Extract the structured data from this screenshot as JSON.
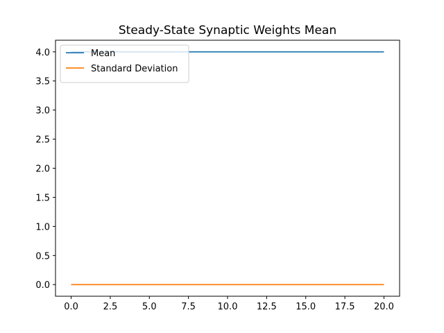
{
  "chart_data": {
    "type": "line",
    "title": "Steady-State Synaptic Weights Mean",
    "xlabel": "",
    "ylabel": "",
    "xlim": [
      -1,
      21
    ],
    "ylim": [
      -0.2,
      4.2
    ],
    "x": [
      0,
      20
    ],
    "series": [
      {
        "name": "Mean",
        "color": "#1f77b4",
        "values": [
          4.0,
          4.0
        ]
      },
      {
        "name": "Standard Deviation",
        "color": "#ff7f0e",
        "values": [
          0.0,
          0.0
        ]
      }
    ],
    "x_ticks": [
      0.0,
      2.5,
      5.0,
      7.5,
      10.0,
      12.5,
      15.0,
      17.5,
      20.0
    ],
    "x_tick_labels": [
      "0.0",
      "2.5",
      "5.0",
      "7.5",
      "10.0",
      "12.5",
      "15.0",
      "17.5",
      "20.0"
    ],
    "y_ticks": [
      0.0,
      0.5,
      1.0,
      1.5,
      2.0,
      2.5,
      3.0,
      3.5,
      4.0
    ],
    "y_tick_labels": [
      "0.0",
      "0.5",
      "1.0",
      "1.5",
      "2.0",
      "2.5",
      "3.0",
      "3.5",
      "4.0"
    ],
    "grid": false,
    "legend_position": "upper-left"
  }
}
